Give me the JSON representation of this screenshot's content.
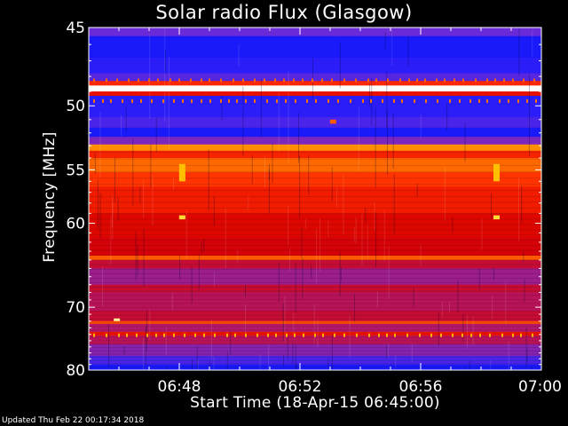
{
  "footer": {
    "updated": "Updated Thu Feb 22 00:17:34 2018"
  },
  "chart_data": {
    "type": "heatmap",
    "title": "Solar radio Flux (Glasgow)",
    "xlabel": "Start Time (18-Apr-15 06:45:00)",
    "ylabel": "Frequency [MHz]",
    "x_range": [
      "06:45",
      "07:00"
    ],
    "x_ticks": [
      "06:48",
      "06:52",
      "06:56",
      "07:00"
    ],
    "y_range": [
      45,
      80
    ],
    "y_ticks": [
      45,
      50,
      55,
      60,
      70,
      80
    ],
    "y_scale": "reciprocal",
    "colormap": [
      "#000064",
      "#1a1aff",
      "#6a2ad8",
      "#b0186e",
      "#d80000",
      "#ff2a00",
      "#ff7a00",
      "#ffd200",
      "#ffffff"
    ],
    "bands": [
      {
        "from": 45.0,
        "to": 45.5,
        "level": 0.25
      },
      {
        "from": 45.5,
        "to": 46.8,
        "level": 0.12
      },
      {
        "from": 46.8,
        "to": 47.8,
        "level": 0.15
      },
      {
        "from": 47.8,
        "to": 48.3,
        "level": 0.22
      },
      {
        "from": 48.3,
        "to": 48.6,
        "level": 0.62
      },
      {
        "from": 48.6,
        "to": 49.0,
        "level": 1.0
      },
      {
        "from": 49.0,
        "to": 49.3,
        "level": 0.55
      },
      {
        "from": 49.3,
        "to": 50.8,
        "level": 0.15
      },
      {
        "from": 50.8,
        "to": 51.6,
        "level": 0.2
      },
      {
        "from": 51.6,
        "to": 52.3,
        "level": 0.12
      },
      {
        "from": 52.3,
        "to": 52.9,
        "level": 0.28
      },
      {
        "from": 52.9,
        "to": 53.4,
        "level": 0.78
      },
      {
        "from": 53.4,
        "to": 54.0,
        "level": 0.6
      },
      {
        "from": 54.0,
        "to": 55.2,
        "level": 0.72
      },
      {
        "from": 55.2,
        "to": 56.5,
        "level": 0.64
      },
      {
        "from": 56.5,
        "to": 59.0,
        "level": 0.58
      },
      {
        "from": 59.0,
        "to": 61.5,
        "level": 0.52
      },
      {
        "from": 61.5,
        "to": 63.5,
        "level": 0.49
      },
      {
        "from": 63.5,
        "to": 64.0,
        "level": 0.7
      },
      {
        "from": 64.0,
        "to": 65.0,
        "level": 0.44
      },
      {
        "from": 65.0,
        "to": 67.0,
        "level": 0.34
      },
      {
        "from": 67.0,
        "to": 68.0,
        "level": 0.44
      },
      {
        "from": 68.0,
        "to": 70.5,
        "level": 0.4
      },
      {
        "from": 70.5,
        "to": 72.0,
        "level": 0.44
      },
      {
        "from": 72.0,
        "to": 72.4,
        "level": 0.68
      },
      {
        "from": 72.4,
        "to": 73.6,
        "level": 0.38
      },
      {
        "from": 73.6,
        "to": 74.2,
        "level": 0.56
      },
      {
        "from": 74.2,
        "to": 75.6,
        "level": 0.4
      },
      {
        "from": 75.6,
        "to": 77.5,
        "level": 0.3
      },
      {
        "from": 77.5,
        "to": 79.0,
        "level": 0.2
      },
      {
        "from": 79.0,
        "to": 80.0,
        "level": 0.12
      }
    ],
    "bursts": [
      {
        "time": "06:48:05",
        "from": 54.5,
        "to": 56.0,
        "level": 0.85
      },
      {
        "time": "06:48:05",
        "from": 59.2,
        "to": 59.6,
        "level": 0.9
      },
      {
        "time": "06:58:30",
        "from": 54.5,
        "to": 56.0,
        "level": 0.85
      },
      {
        "time": "06:58:30",
        "from": 59.2,
        "to": 59.6,
        "level": 0.9
      },
      {
        "time": "06:45:55",
        "from": 71.6,
        "to": 72.0,
        "level": 0.95
      },
      {
        "time": "06:53:05",
        "from": 51.0,
        "to": 51.3,
        "level": 0.7
      }
    ]
  }
}
